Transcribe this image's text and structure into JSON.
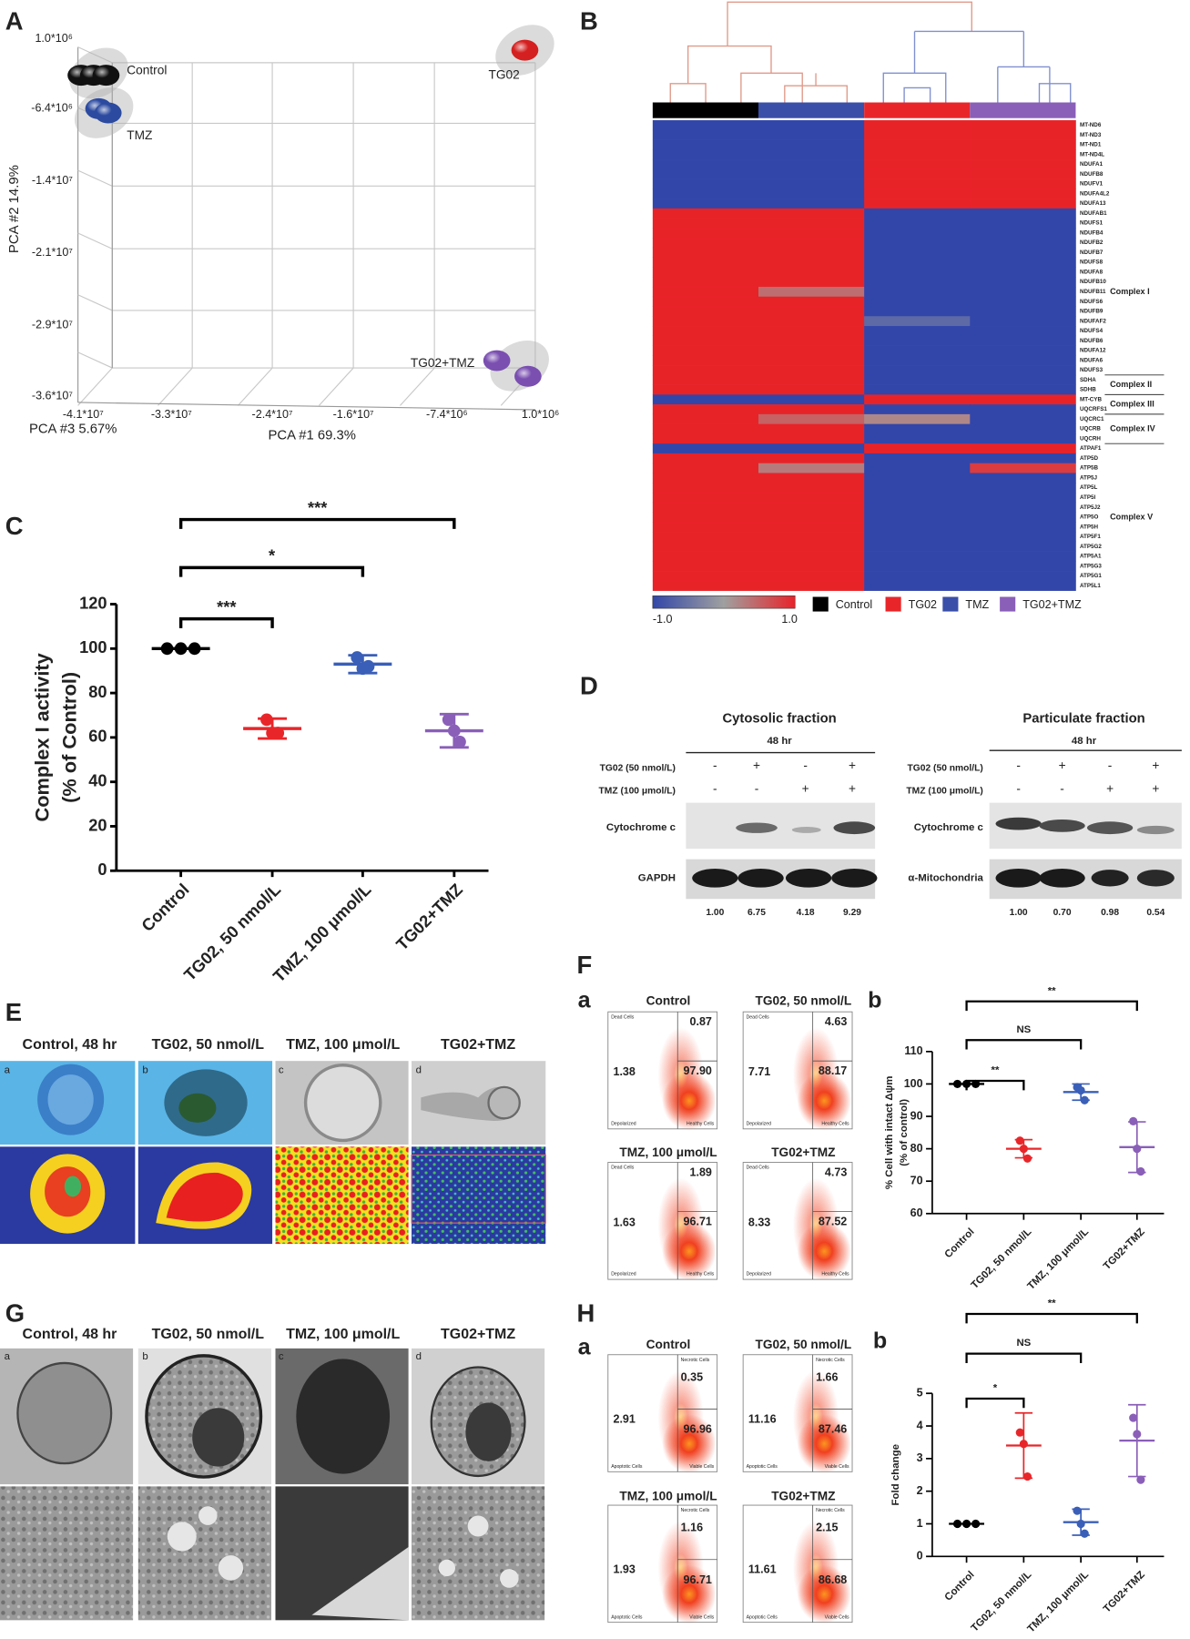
{
  "panel_labels": [
    "A",
    "B",
    "C",
    "D",
    "E",
    "F",
    "G",
    "H"
  ],
  "pca": {
    "y_ticks": [
      "1.0*10⁶",
      "-6.4*10⁶",
      "-1.4*10⁷",
      "-2.1*10⁷",
      "-2.9*10⁷",
      "-3.6*10⁷"
    ],
    "x_ticks": [
      "-4.1*10⁷",
      "-3.3*10⁷",
      "-2.4*10⁷",
      "-1.6*10⁷",
      "-7.4*10⁶",
      "1.0*10⁶"
    ],
    "y_label": "PCA #2 14.9%",
    "z_label": "PCA #3 5.67%",
    "x_label": "PCA #1 69.3%",
    "groups": [
      {
        "name": "Control",
        "color": "#111111"
      },
      {
        "name": "TMZ",
        "color": "#2b4aa0"
      },
      {
        "name": "TG02",
        "color": "#d42020"
      },
      {
        "name": "TG02+TMZ",
        "color": "#7a4fb0"
      }
    ]
  },
  "heatmap": {
    "genes": [
      "MT-ND6",
      "MT-ND3",
      "MT-ND1",
      "MT-ND4L",
      "NDUFA1",
      "NDUFB8",
      "NDUFV1",
      "NDUFA4L2",
      "NDUFA13",
      "NDUFAB1",
      "NDUFS1",
      "NDUFB4",
      "NDUFB2",
      "NDUFB7",
      "NDUFS8",
      "NDUFA8",
      "NDUFB10",
      "NDUFB11",
      "NDUFS6",
      "NDUFB9",
      "NDUFAF2",
      "NDUFS4",
      "NDUFB6",
      "NDUFA12",
      "NDUFA6",
      "NDUFS3",
      "SDHA",
      "SDHB",
      "MT-CYB",
      "UQCRFS1",
      "UQCRC1",
      "UQCRB",
      "UQCRH",
      "ATPAF1",
      "ATP5D",
      "ATP5B",
      "ATP5J",
      "ATP5L",
      "ATP5I",
      "ATP5J2",
      "ATP5O",
      "ATP5H",
      "ATP5F1",
      "ATP5G2",
      "ATP5A1",
      "ATP5G3",
      "ATP5G1",
      "ATP5L1"
    ],
    "values": [
      [
        -1,
        -1,
        1,
        1
      ],
      [
        -1,
        -1,
        1,
        1
      ],
      [
        -1,
        -1,
        1,
        1
      ],
      [
        -1,
        -1,
        1,
        1
      ],
      [
        -1,
        -1,
        1,
        1
      ],
      [
        -1,
        -1,
        1,
        1
      ],
      [
        -1,
        -1,
        1,
        1
      ],
      [
        -1,
        -1,
        1,
        1
      ],
      [
        -1,
        -1,
        1,
        1
      ],
      [
        1,
        1,
        -1,
        -1
      ],
      [
        1,
        1,
        -1,
        -1
      ],
      [
        1,
        1,
        -1,
        -1
      ],
      [
        1,
        1,
        -1,
        -1
      ],
      [
        1,
        1,
        -1,
        -1
      ],
      [
        1,
        1,
        -1,
        -1
      ],
      [
        1,
        1,
        -1,
        -1
      ],
      [
        1,
        1,
        -1,
        -1
      ],
      [
        1,
        0.4,
        -1,
        -1
      ],
      [
        1,
        1,
        -1,
        -1
      ],
      [
        1,
        1,
        -1,
        -1
      ],
      [
        1,
        1,
        -0.6,
        -1
      ],
      [
        1,
        1,
        -1,
        -1
      ],
      [
        1,
        1,
        -1,
        -1
      ],
      [
        1,
        1,
        -1,
        -1
      ],
      [
        1,
        1,
        -1,
        -1
      ],
      [
        1,
        1,
        -1,
        -1
      ],
      [
        1,
        1,
        -1,
        -1
      ],
      [
        1,
        1,
        -1,
        -1
      ],
      [
        -1,
        -1,
        1,
        1
      ],
      [
        1,
        1,
        -1,
        -1
      ],
      [
        1,
        0.5,
        0.2,
        -1
      ],
      [
        1,
        1,
        -1,
        -1
      ],
      [
        1,
        1,
        -1,
        -1
      ],
      [
        -1,
        -1,
        1,
        1
      ],
      [
        1,
        1,
        -1,
        -1
      ],
      [
        1,
        0.3,
        -1,
        0.8
      ],
      [
        1,
        1,
        -1,
        -1
      ],
      [
        1,
        1,
        -1,
        -1
      ],
      [
        1,
        1,
        -1,
        -1
      ],
      [
        1,
        1,
        -1,
        -1
      ],
      [
        1,
        1,
        -1,
        -1
      ],
      [
        1,
        1,
        -1,
        -1
      ],
      [
        1,
        1,
        -1,
        -1
      ],
      [
        1,
        1,
        -1,
        -1
      ],
      [
        1,
        1,
        -1,
        -1
      ],
      [
        1,
        1,
        -1,
        -1
      ],
      [
        1,
        1,
        -1,
        -1
      ],
      [
        1,
        1,
        -1,
        -1
      ]
    ],
    "complexes": [
      "Complex I",
      "Complex II",
      "Complex III",
      "Complex IV",
      "Complex V"
    ],
    "scale": [
      "-1.0",
      "1.0"
    ],
    "color_bar": [
      "#000000",
      "#3a4fa8",
      "#e8262a",
      "#8a5fb8"
    ],
    "legend": [
      {
        "name": "Control",
        "color": "#000000"
      },
      {
        "name": "TG02",
        "color": "#e8262a"
      },
      {
        "name": "TMZ",
        "color": "#3a4fa8"
      },
      {
        "name": "TG02+TMZ",
        "color": "#8a5fb8"
      }
    ]
  },
  "western": {
    "cytosolic": {
      "title": "Cytosolic fraction",
      "time": "48 hr",
      "rows": [
        "TG02 (50 nmol/L)",
        "TMZ (100 μmol/L)"
      ],
      "signs": [
        [
          "-",
          "+",
          "-",
          "+"
        ],
        [
          "-",
          "-",
          "+",
          "+"
        ]
      ],
      "bands": [
        "Cytochrome c",
        "GAPDH"
      ],
      "ratios": [
        "1.00",
        "6.75",
        "4.18",
        "9.29"
      ]
    },
    "particulate": {
      "title": "Particulate fraction",
      "time": "48 hr",
      "rows": [
        "TG02 (50 nmol/L)",
        "TMZ (100 μmol/L)"
      ],
      "signs": [
        [
          "-",
          "+",
          "-",
          "+"
        ],
        [
          "-",
          "-",
          "+",
          "+"
        ]
      ],
      "bands": [
        "Cytochrome c",
        "α-Mitochondria"
      ],
      "ratios": [
        "1.00",
        "0.70",
        "0.98",
        "0.54"
      ]
    }
  },
  "conditions": [
    "Control, 48 hr",
    "TG02, 50 nmol/L",
    "TMZ, 100 μmol/L",
    "TG02+TMZ"
  ],
  "sub_letters": [
    "a",
    "b",
    "c",
    "d"
  ],
  "flow": {
    "mmp": {
      "sub_label": "a",
      "titles": [
        "Control",
        "TG02, 50 nmol/L",
        "TMZ, 100 μmol/L",
        "TG02+TMZ"
      ],
      "quadrants": [
        "Dead Cells",
        "Depolarized",
        "Healthy Cells"
      ],
      "values": [
        [
          "0.87",
          "1.38",
          "97.90"
        ],
        [
          "4.63",
          "7.71",
          "88.17"
        ],
        [
          "1.89",
          "1.63",
          "96.71"
        ],
        [
          "4.73",
          "8.33",
          "87.52"
        ]
      ]
    },
    "apoptosis": {
      "sub_label": "a",
      "titles": [
        "Control",
        "TG02, 50 nmol/L",
        "TMZ, 100 μmol/L",
        "TG02+TMZ"
      ],
      "quadrants": [
        "Necrotic Cells",
        "Apoptotic Cells",
        "Viable Cells"
      ],
      "values": [
        [
          "0.35",
          "2.91",
          "96.96"
        ],
        [
          "1.66",
          "11.16",
          "87.46"
        ],
        [
          "1.16",
          "1.93",
          "96.71"
        ],
        [
          "2.15",
          "11.61",
          "86.68"
        ]
      ]
    }
  },
  "chart_data": [
    {
      "type": "dot",
      "categories": [
        "Control",
        "TG02, 50 nmol/L",
        "TMZ, 100 μmol/L",
        "TG02+TMZ"
      ],
      "y_label": [
        "Complex I activity",
        "(% of Control)"
      ],
      "ylim": [
        0,
        120
      ],
      "yticks": [
        0,
        20,
        40,
        60,
        80,
        100,
        120
      ],
      "colors": [
        "#000000",
        "#e8262a",
        "#3a5fb8",
        "#8a5fb8"
      ],
      "points": [
        [
          100,
          100,
          100
        ],
        [
          68,
          62,
          62
        ],
        [
          96,
          91,
          92
        ],
        [
          68,
          63,
          58
        ]
      ],
      "means": [
        100,
        64,
        93,
        63
      ],
      "sd": [
        0,
        4.5,
        4,
        7.5
      ],
      "significance": [
        "***",
        "*",
        "***"
      ]
    },
    {
      "type": "dot",
      "sub_label": "b",
      "categories": [
        "Control",
        "TG02, 50 nmol/L",
        "TMZ, 100 μmol/L",
        "TG02+TMZ"
      ],
      "y_label": [
        "% Cell with intact Δψm",
        "(% of control)"
      ],
      "ylim": [
        60,
        110
      ],
      "yticks": [
        60,
        70,
        80,
        90,
        100,
        110
      ],
      "colors": [
        "#000000",
        "#e8262a",
        "#3a5fb8",
        "#8a5fb8"
      ],
      "points": [
        [
          100,
          100,
          100
        ],
        [
          82.5,
          80,
          77
        ],
        [
          99,
          98,
          95
        ],
        [
          88.5,
          80,
          73
        ]
      ],
      "means": [
        100,
        80,
        97.5,
        80.5
      ],
      "sd": [
        0,
        2.8,
        2.5,
        7.8
      ],
      "significance": [
        "**",
        "NS",
        "**"
      ]
    },
    {
      "type": "dot",
      "sub_label": "b",
      "categories": [
        "Control",
        "TG02, 50 nmol/L",
        "TMZ, 100 μmol/L",
        "TG02+TMZ"
      ],
      "y_label": [
        "Fold change"
      ],
      "ylim": [
        0,
        5
      ],
      "yticks": [
        0,
        1,
        2,
        3,
        4,
        5
      ],
      "colors": [
        "#000000",
        "#e8262a",
        "#3a5fb8",
        "#8a5fb8"
      ],
      "points": [
        [
          1,
          1,
          1
        ],
        [
          3.8,
          3.45,
          2.45
        ],
        [
          1.4,
          1.0,
          0.7
        ],
        [
          4.25,
          3.75,
          2.35
        ]
      ],
      "means": [
        1,
        3.4,
        1.05,
        3.55
      ],
      "sd": [
        0,
        1,
        0.4,
        1.1
      ],
      "significance": [
        "*",
        "NS",
        "**"
      ]
    }
  ]
}
